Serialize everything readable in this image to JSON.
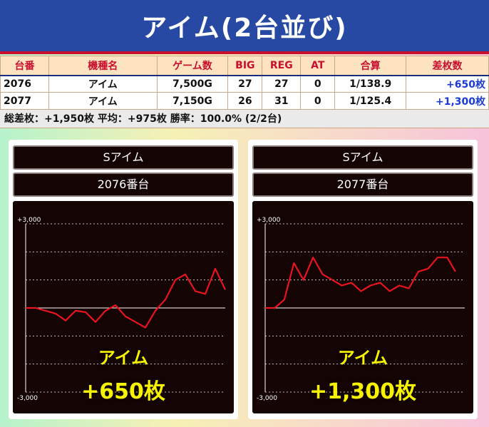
{
  "title": "アイム(2台並び)",
  "columns": [
    "台番",
    "機種名",
    "ゲーム数",
    "BIG",
    "REG",
    "AT",
    "合算",
    "差枚数"
  ],
  "rows": [
    {
      "unit": "2076",
      "machine": "アイム",
      "games": "7,500G",
      "big": "27",
      "reg": "27",
      "at": "0",
      "ratio": "1/138.9",
      "diff": "+650枚"
    },
    {
      "unit": "2077",
      "machine": "アイム",
      "games": "7,150G",
      "big": "26",
      "reg": "31",
      "at": "0",
      "ratio": "1/125.4",
      "diff": "+1,300枚"
    }
  ],
  "summary": "総差枚：+1,950枚  平均：+975枚  勝率：100.0% (2/2台)",
  "colors": {
    "title_bg": "#2749a3",
    "title_border": "#c8102e",
    "graph_line": "#e8141e",
    "overlay_text": "#f7f200",
    "diff_text": "#1a3ad6"
  },
  "panels": [
    {
      "machine_label": "Sアイム",
      "unit_label": "2076番台",
      "overlay_name": "アイム",
      "overlay_diff": "+650枚",
      "chart_data": {
        "type": "line",
        "y_ticks": [
          "+3,000",
          "-3,000"
        ],
        "ylim": [
          -3000,
          3000
        ],
        "x": [
          0,
          375,
          750,
          1125,
          1500,
          1875,
          2250,
          2625,
          3000,
          3375,
          3750,
          4125,
          4500,
          4875,
          5250,
          5625,
          6000,
          6375,
          6750,
          7125,
          7500
        ],
        "values": [
          0,
          0,
          -100,
          -200,
          -450,
          -100,
          -150,
          -500,
          -100,
          100,
          -300,
          -500,
          -700,
          -100,
          300,
          1000,
          1200,
          600,
          500,
          1400,
          650
        ]
      }
    },
    {
      "machine_label": "Sアイム",
      "unit_label": "2077番台",
      "overlay_name": "アイム",
      "overlay_diff": "+1,300枚",
      "chart_data": {
        "type": "line",
        "y_ticks": [
          "+3,000",
          "-3,000"
        ],
        "ylim": [
          -3000,
          3000
        ],
        "x": [
          0,
          360,
          720,
          1080,
          1440,
          1800,
          2160,
          2520,
          2880,
          3240,
          3600,
          3960,
          4320,
          4680,
          5040,
          5400,
          5760,
          6120,
          6480,
          6840,
          7150
        ],
        "values": [
          0,
          0,
          300,
          1600,
          1000,
          1800,
          1200,
          1000,
          800,
          900,
          600,
          800,
          900,
          600,
          800,
          700,
          1300,
          1400,
          1800,
          1800,
          1300
        ]
      }
    }
  ]
}
